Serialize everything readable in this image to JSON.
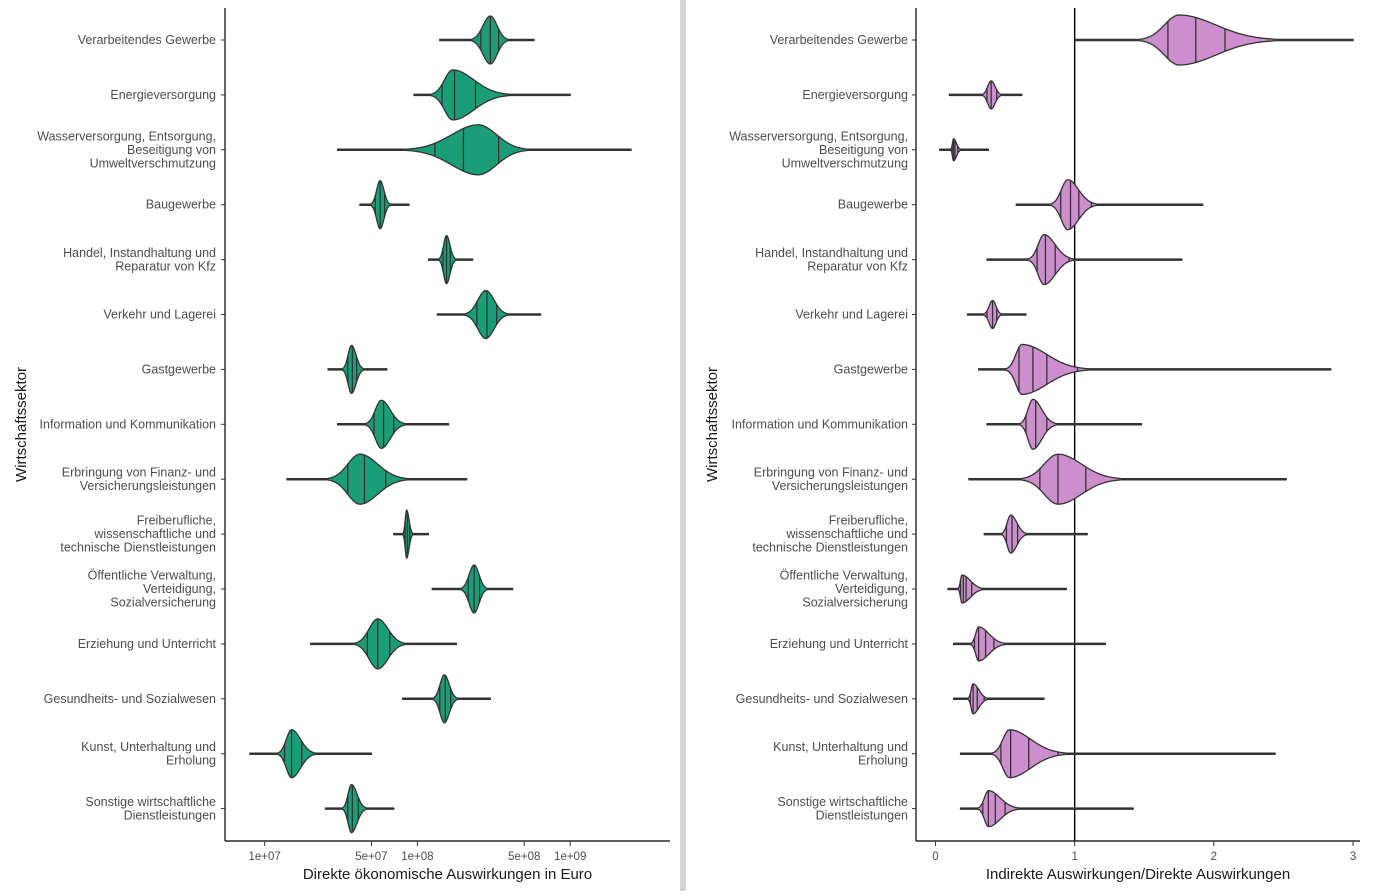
{
  "chart_data": [
    {
      "type": "violin",
      "xlabel": "Direkte ökonomische Auswirkungen in Euro",
      "ylabel": "Wirtschaftssektor",
      "x_scale": "log10",
      "xlim": [
        5500000,
        4500000000
      ],
      "x_ticks": [
        10000000,
        50000000,
        100000000,
        500000000,
        1000000000
      ],
      "x_tick_labels": [
        "1e+07",
        "5e+07",
        "1e+08",
        "5e+08",
        "1e+09"
      ],
      "fill_color": "#1b9e77",
      "grid": false,
      "categories": [
        "Verarbeitendes Gewerbe",
        "Energieversorgung",
        "Wasserversorgung, Entsorgung, Beseitigung von Umweltverschmutzung",
        "Baugewerbe",
        "Handel, Instandhaltung und Reparatur von Kfz",
        "Verkehr und Lagerei",
        "Gastgewerbe",
        "Information und Kommunikation",
        "Erbringung von Finanz- und Versicherungsleistungen",
        "Freiberufliche, wissenschaftliche und technische Dienstleistungen",
        "Öffentliche Verwaltung, Verteidigung, Sozialversicherung",
        "Erziehung und Unterricht",
        "Gesundheits- und Sozialwesen",
        "Kunst, Unterhaltung und Erholung",
        "Sonstige wirtschaftliche Dienstleistungen"
      ],
      "series": [
        {
          "min": 140000000,
          "max": 580000000,
          "mode": 300000000,
          "quantiles": [
            220000000,
            260000000,
            300000000,
            340000000,
            400000000
          ],
          "halfwidth": 24
        },
        {
          "min": 95000000,
          "max": 1000000000,
          "mode": 170000000,
          "quantiles": [
            120000000,
            145000000,
            175000000,
            240000000,
            420000000
          ],
          "halfwidth": 25
        },
        {
          "min": 30000000,
          "max": 2500000000,
          "mode": 250000000,
          "quantiles": [
            80000000,
            130000000,
            200000000,
            340000000,
            550000000
          ],
          "halfwidth": 25
        },
        {
          "min": 42000000,
          "max": 88000000,
          "mode": 57000000,
          "quantiles": [
            49000000,
            53000000,
            57000000,
            61000000,
            67000000
          ],
          "halfwidth": 24
        },
        {
          "min": 118000000,
          "max": 230000000,
          "mode": 155000000,
          "quantiles": [
            137000000,
            147000000,
            155000000,
            164000000,
            180000000
          ],
          "halfwidth": 24
        },
        {
          "min": 135000000,
          "max": 640000000,
          "mode": 280000000,
          "quantiles": [
            200000000,
            245000000,
            285000000,
            330000000,
            400000000
          ],
          "halfwidth": 24
        },
        {
          "min": 26000000,
          "max": 63000000,
          "mode": 37000000,
          "quantiles": [
            32000000,
            35000000,
            37500000,
            40000000,
            45000000
          ],
          "halfwidth": 24
        },
        {
          "min": 30000000,
          "max": 160000000,
          "mode": 58000000,
          "quantiles": [
            45000000,
            52000000,
            60000000,
            70000000,
            85000000
          ],
          "halfwidth": 24
        },
        {
          "min": 14000000,
          "max": 210000000,
          "mode": 42000000,
          "quantiles": [
            25000000,
            35000000,
            45000000,
            62000000,
            90000000
          ],
          "halfwidth": 25
        },
        {
          "min": 70000000,
          "max": 118000000,
          "mode": 85000000,
          "quantiles": [
            80000000,
            83000000,
            86000000,
            89000000,
            94000000
          ],
          "halfwidth": 24
        },
        {
          "min": 125000000,
          "max": 420000000,
          "mode": 235000000,
          "quantiles": [
            190000000,
            215000000,
            235000000,
            255000000,
            290000000
          ],
          "halfwidth": 24
        },
        {
          "min": 20000000,
          "max": 180000000,
          "mode": 55000000,
          "quantiles": [
            38000000,
            47000000,
            55000000,
            66000000,
            85000000
          ],
          "halfwidth": 25
        },
        {
          "min": 80000000,
          "max": 300000000,
          "mode": 150000000,
          "quantiles": [
            125000000,
            140000000,
            152000000,
            165000000,
            185000000
          ],
          "halfwidth": 24
        },
        {
          "min": 8000000,
          "max": 50000000,
          "mode": 15000000,
          "quantiles": [
            12000000,
            13500000,
            15000000,
            17500000,
            22000000
          ],
          "halfwidth": 24
        },
        {
          "min": 25000000,
          "max": 70000000,
          "mode": 37000000,
          "quantiles": [
            32000000,
            35000000,
            37500000,
            41000000,
            47000000
          ],
          "halfwidth": 24
        }
      ]
    },
    {
      "type": "violin",
      "xlabel": "Indirekte Auswirkungen/Direkte Auswirkungen",
      "ylabel": "Wirtschaftssektor",
      "x_scale": "linear",
      "xlim": [
        -0.14,
        3.05
      ],
      "x_ticks": [
        0,
        1,
        2,
        3
      ],
      "x_tick_labels": [
        "0",
        "1",
        "2",
        "3"
      ],
      "reference_line": 1,
      "fill_color": "#cc8ecc",
      "grid": false,
      "categories": [
        "Verarbeitendes Gewerbe",
        "Energieversorgung",
        "Wasserversorgung, Entsorgung, Beseitigung von Umweltverschmutzung",
        "Baugewerbe",
        "Handel, Instandhaltung und Reparatur von Kfz",
        "Verkehr und Lagerei",
        "Gastgewerbe",
        "Information und Kommunikation",
        "Erbringung von Finanz- und Versicherungsleistungen",
        "Freiberufliche, wissenschaftliche und technische Dienstleistungen",
        "Öffentliche Verwaltung, Verteidigung, Sozialversicherung",
        "Erziehung und Unterricht",
        "Gesundheits- und Sozialwesen",
        "Kunst, Unterhaltung und Erholung",
        "Sonstige wirtschaftliche Dienstleistungen"
      ],
      "series": [
        {
          "min": 1.0,
          "max": 3.0,
          "mode": 1.75,
          "quantiles": [
            1.45,
            1.67,
            1.87,
            2.08,
            2.5
          ],
          "halfwidth": 25
        },
        {
          "min": 0.1,
          "max": 0.62,
          "mode": 0.4,
          "quantiles": [
            0.33,
            0.37,
            0.4,
            0.44,
            0.48
          ],
          "halfwidth": 14
        },
        {
          "min": 0.03,
          "max": 0.38,
          "mode": 0.13,
          "quantiles": [
            0.11,
            0.12,
            0.13,
            0.14,
            0.16
          ],
          "halfwidth": 11
        },
        {
          "min": 0.58,
          "max": 1.92,
          "mode": 0.95,
          "quantiles": [
            0.82,
            0.9,
            0.97,
            1.03,
            1.12
          ],
          "halfwidth": 25
        },
        {
          "min": 0.37,
          "max": 1.77,
          "mode": 0.78,
          "quantiles": [
            0.66,
            0.73,
            0.79,
            0.86,
            0.96
          ],
          "halfwidth": 25
        },
        {
          "min": 0.23,
          "max": 0.65,
          "mode": 0.41,
          "quantiles": [
            0.34,
            0.37,
            0.41,
            0.44,
            0.48
          ],
          "halfwidth": 14
        },
        {
          "min": 0.31,
          "max": 2.84,
          "mode": 0.62,
          "quantiles": [
            0.5,
            0.6,
            0.7,
            0.8,
            1.02
          ],
          "halfwidth": 25
        },
        {
          "min": 0.37,
          "max": 1.48,
          "mode": 0.7,
          "quantiles": [
            0.6,
            0.65,
            0.72,
            0.8,
            0.88
          ],
          "halfwidth": 25
        },
        {
          "min": 0.24,
          "max": 2.52,
          "mode": 0.88,
          "quantiles": [
            0.6,
            0.75,
            0.88,
            1.08,
            1.36
          ],
          "halfwidth": 25
        },
        {
          "min": 0.35,
          "max": 1.09,
          "mode": 0.54,
          "quantiles": [
            0.47,
            0.51,
            0.55,
            0.59,
            0.65
          ],
          "halfwidth": 19
        },
        {
          "min": 0.09,
          "max": 0.94,
          "mode": 0.19,
          "quantiles": [
            0.16,
            0.18,
            0.2,
            0.22,
            0.26
          ],
          "halfwidth": 14
        },
        {
          "min": 0.13,
          "max": 1.22,
          "mode": 0.31,
          "quantiles": [
            0.25,
            0.28,
            0.31,
            0.36,
            0.42
          ],
          "halfwidth": 17
        },
        {
          "min": 0.13,
          "max": 0.78,
          "mode": 0.27,
          "quantiles": [
            0.23,
            0.25,
            0.27,
            0.3,
            0.35
          ],
          "halfwidth": 15
        },
        {
          "min": 0.18,
          "max": 2.44,
          "mode": 0.53,
          "quantiles": [
            0.4,
            0.47,
            0.54,
            0.67,
            0.88
          ],
          "halfwidth": 24
        },
        {
          "min": 0.18,
          "max": 1.42,
          "mode": 0.38,
          "quantiles": [
            0.3,
            0.34,
            0.38,
            0.43,
            0.5
          ],
          "halfwidth": 18
        }
      ]
    }
  ]
}
